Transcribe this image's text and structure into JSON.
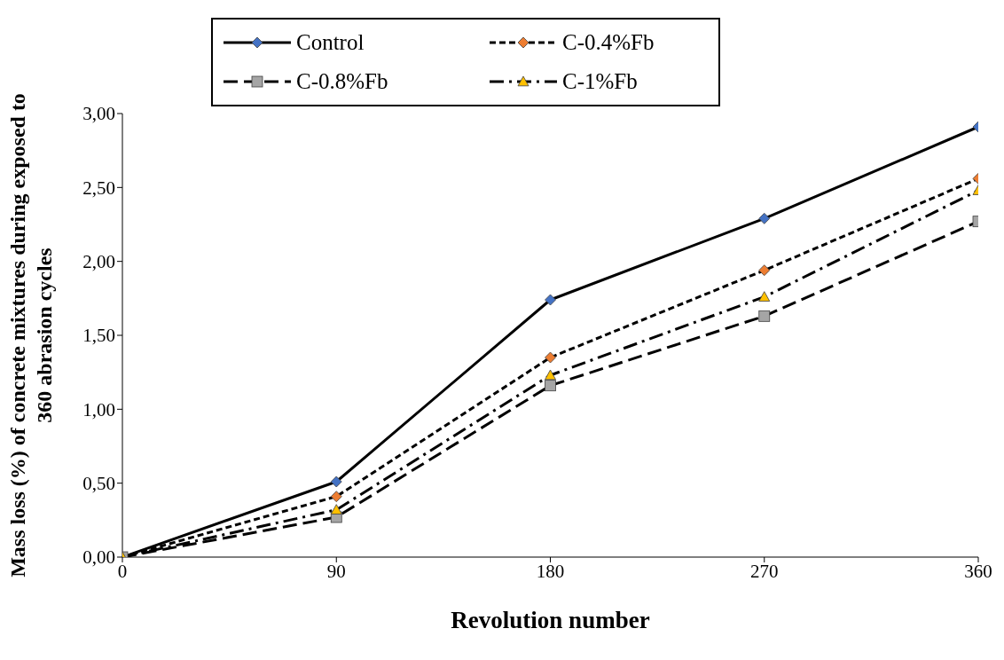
{
  "chart_data": {
    "type": "line",
    "xlabel": "Revolution number",
    "ylabel": "Mass loss (%) of concrete mixtures during exposed to 360 abrasion cycles",
    "x": [
      0,
      90,
      180,
      270,
      360
    ],
    "xlim": [
      0,
      360
    ],
    "xticks": [
      0,
      90,
      180,
      270,
      360
    ],
    "ylim": [
      0,
      3
    ],
    "yticks": [
      {
        "value": 0,
        "label": "0,00"
      },
      {
        "value": 0.5,
        "label": "0,50"
      },
      {
        "value": 1,
        "label": "1,00"
      },
      {
        "value": 1.5,
        "label": "1,50"
      },
      {
        "value": 2,
        "label": "2,00"
      },
      {
        "value": 2.5,
        "label": "2,50"
      },
      {
        "value": 3,
        "label": "3,00"
      }
    ],
    "grid": false,
    "legend": "top left",
    "series": [
      {
        "name": "Control",
        "color": "#4472c4",
        "values": [
          0,
          0.51,
          1.74,
          2.29,
          2.91
        ],
        "marker": "diamond",
        "line_style": "solid"
      },
      {
        "name": "C-0.4%Fb",
        "color": "#ed7d31",
        "values": [
          0,
          0.41,
          1.35,
          1.94,
          2.56
        ],
        "marker": "diamond",
        "line_style": "dashed"
      },
      {
        "name": "C-0.8%Fb",
        "color": "#a5a5a5",
        "values": [
          0,
          0.27,
          1.16,
          1.63,
          2.27
        ],
        "marker": "square",
        "line_style": "longdash"
      },
      {
        "name": "C-1%Fb",
        "color": "#ffc000",
        "values": [
          0,
          0.32,
          1.23,
          1.76,
          2.48
        ],
        "marker": "triangle",
        "line_style": "dashdot"
      }
    ]
  }
}
